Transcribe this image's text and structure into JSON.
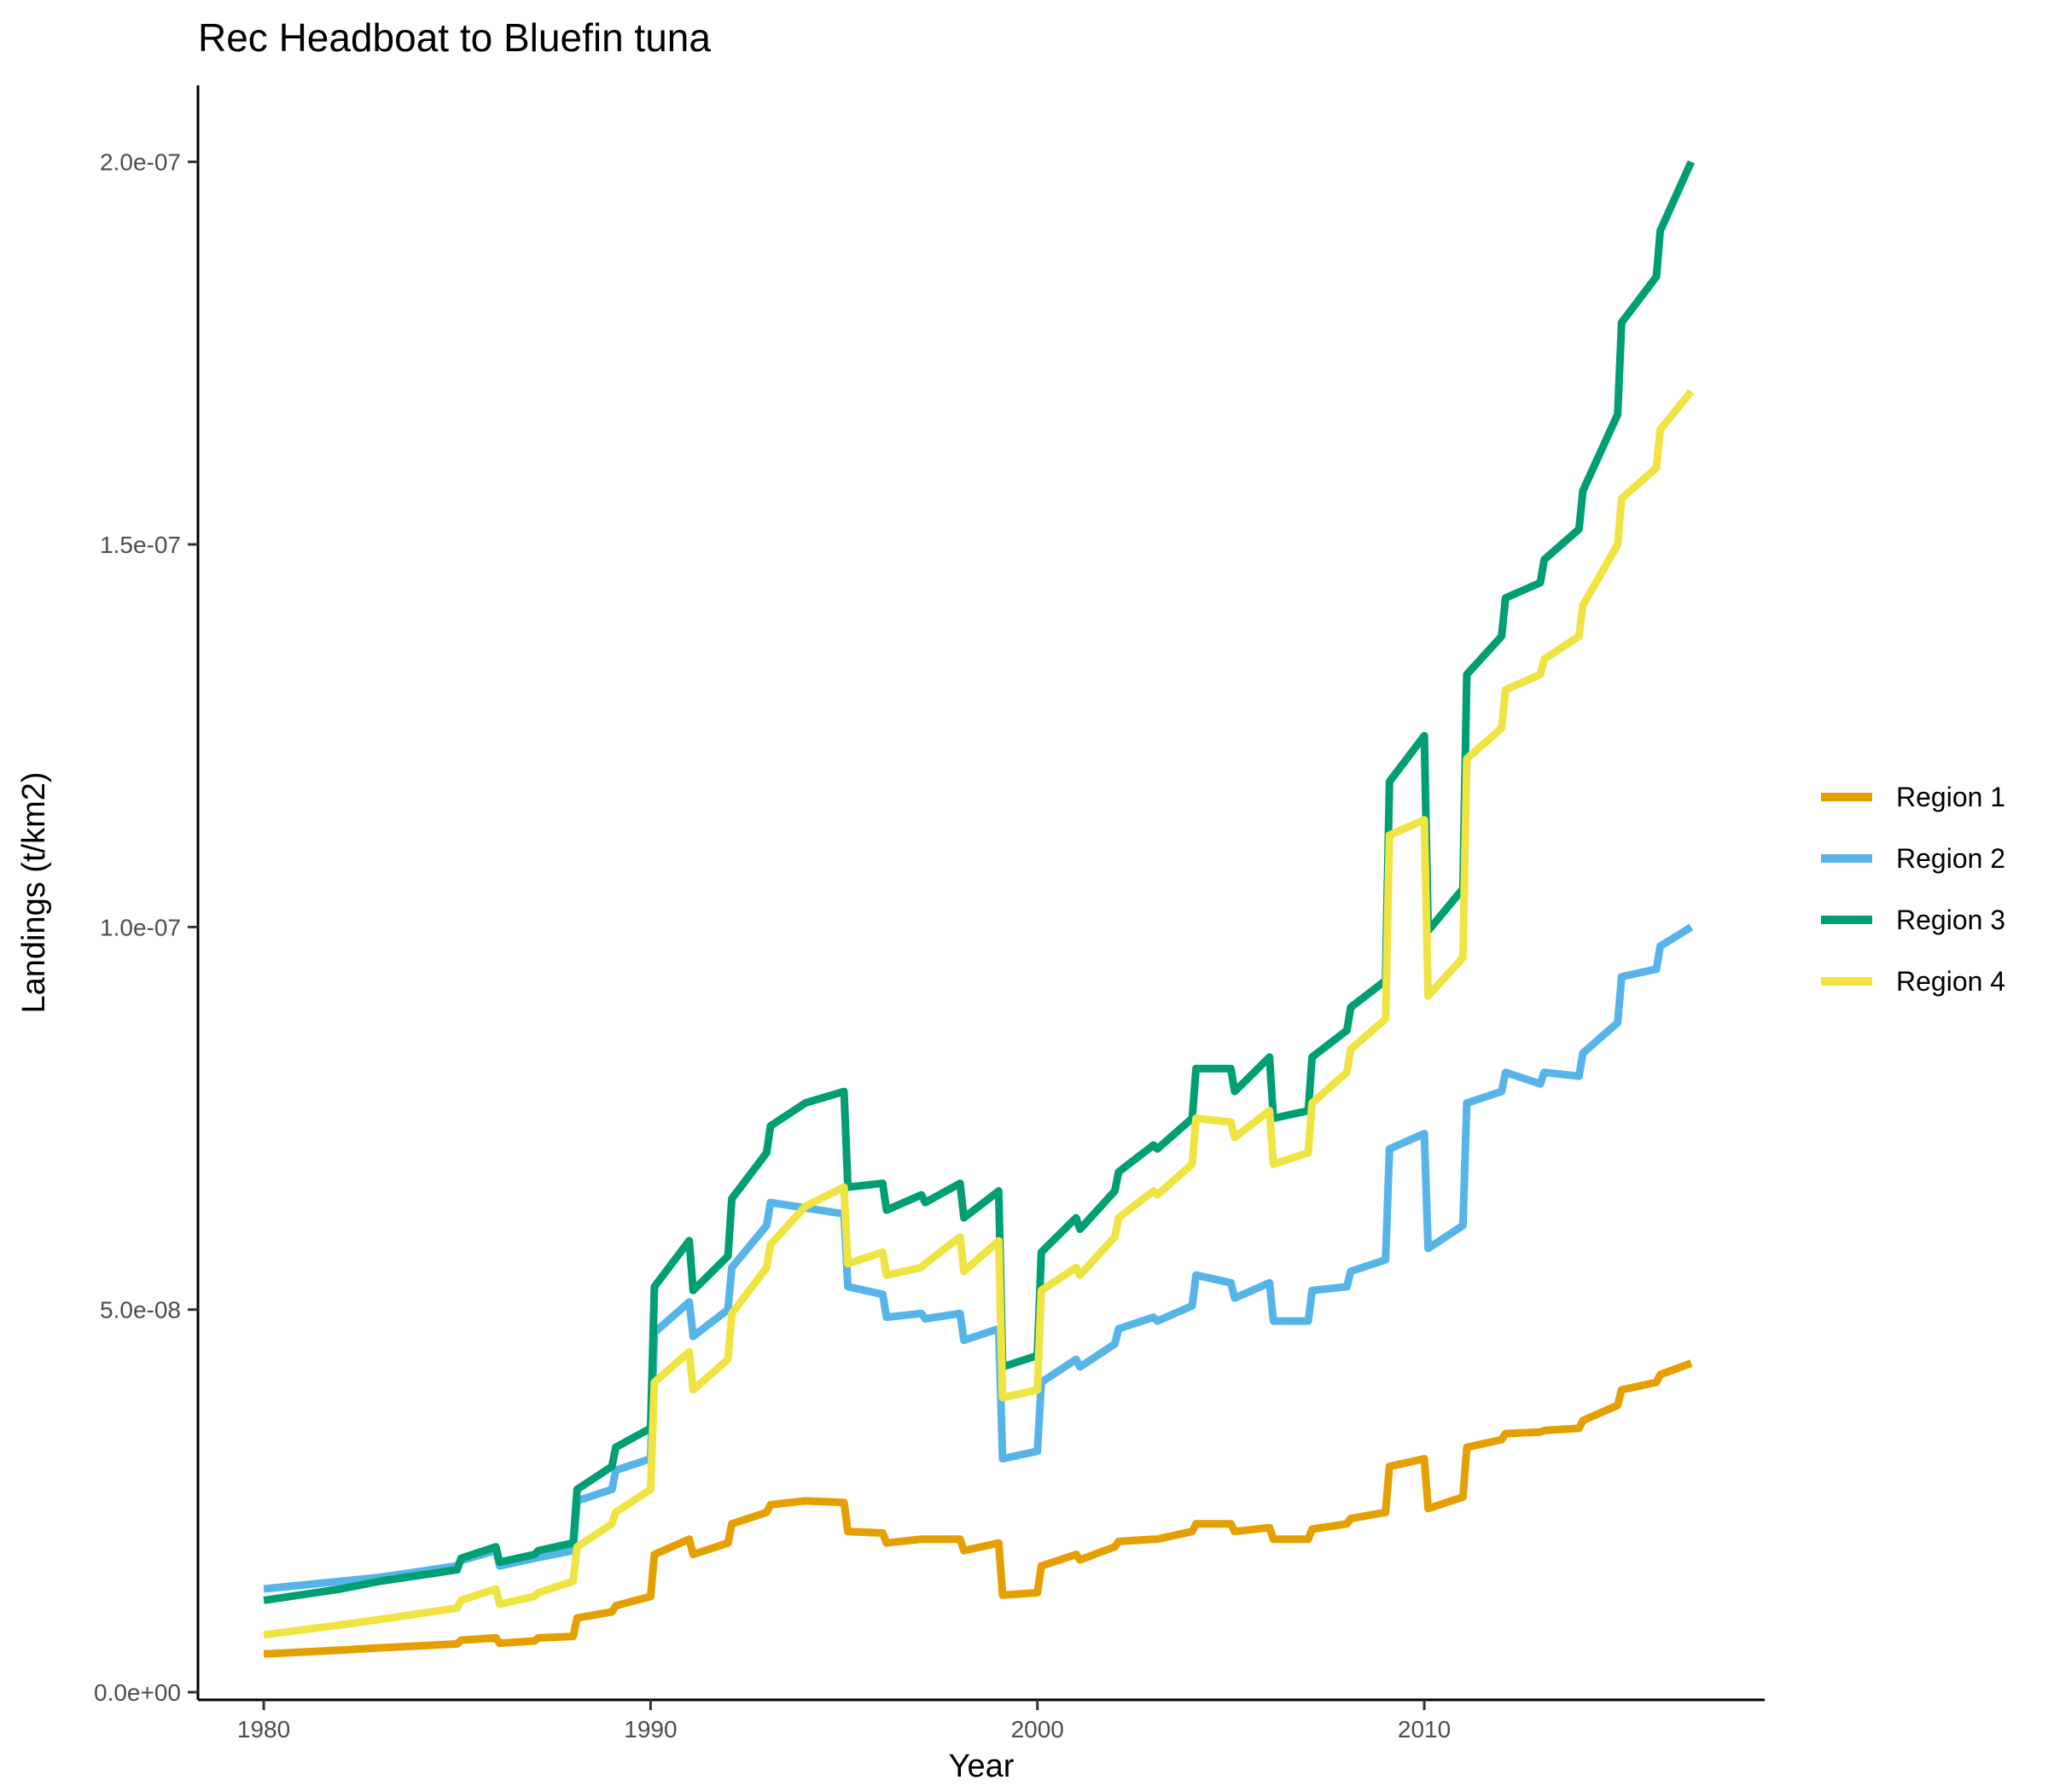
{
  "chart_data": {
    "type": "line",
    "title": "Rec Headboat to Bluefin tuna",
    "xlabel": "Year",
    "ylabel": "Landings (t/km2)",
    "xlim": [
      1978.3,
      2018.8
    ],
    "ylim": [
      -1e-09,
      2.1e-07
    ],
    "xticks": [
      1980,
      1990,
      2000,
      2010
    ],
    "xtick_labels": [
      "1980",
      "1990",
      "2000",
      "2010"
    ],
    "yticks": [
      0,
      5e-08,
      1e-07,
      1.5e-07,
      2e-07
    ],
    "ytick_labels": [
      "0.0e+00",
      "5.0e-08",
      "1.0e-07",
      "1.5e-07",
      "2.0e-07"
    ],
    "grid": false,
    "legend_position": "right",
    "series": [
      {
        "name": "Region 1",
        "color": "#E69F00",
        "points": [
          [
            1980,
            5e-09
          ],
          [
            1982,
            5.5e-09
          ],
          [
            1983,
            5.8e-09
          ],
          [
            1985,
            6.3e-09
          ],
          [
            1985.1,
            6.8e-09
          ],
          [
            1986,
            7.1e-09
          ],
          [
            1986.1,
            6.4e-09
          ],
          [
            1987,
            6.7e-09
          ],
          [
            1987.1,
            7.1e-09
          ],
          [
            1988,
            7.3e-09
          ],
          [
            1988.1,
            9.7e-09
          ],
          [
            1989,
            1.05e-08
          ],
          [
            1989.1,
            1.13e-08
          ],
          [
            1990,
            1.25e-08
          ],
          [
            1990.1,
            1.8e-08
          ],
          [
            1991,
            2e-08
          ],
          [
            1991.1,
            1.8e-08
          ],
          [
            1992,
            1.95e-08
          ],
          [
            1992.1,
            2.2e-08
          ],
          [
            1993,
            2.35e-08
          ],
          [
            1993.1,
            2.45e-08
          ],
          [
            1994,
            2.5e-08
          ],
          [
            1995,
            2.48e-08
          ],
          [
            1995.1,
            2.1e-08
          ],
          [
            1996,
            2.08e-08
          ],
          [
            1996.1,
            1.95e-08
          ],
          [
            1997,
            2e-08
          ],
          [
            1998,
            2e-08
          ],
          [
            1998.1,
            1.85e-08
          ],
          [
            1999,
            1.95e-08
          ],
          [
            1999.1,
            1.27e-08
          ],
          [
            2000,
            1.3e-08
          ],
          [
            2000.1,
            1.65e-08
          ],
          [
            2001,
            1.8e-08
          ],
          [
            2001.1,
            1.73e-08
          ],
          [
            2002,
            1.9e-08
          ],
          [
            2002.1,
            1.97e-08
          ],
          [
            2003,
            2e-08
          ],
          [
            2003.1,
            2e-08
          ],
          [
            2004,
            2.1e-08
          ],
          [
            2004.1,
            2.2e-08
          ],
          [
            2005,
            2.2e-08
          ],
          [
            2005.1,
            2.1e-08
          ],
          [
            2006,
            2.15e-08
          ],
          [
            2006.1,
            2e-08
          ],
          [
            2007,
            2e-08
          ],
          [
            2007.1,
            2.13e-08
          ],
          [
            2008,
            2.2e-08
          ],
          [
            2008.1,
            2.27e-08
          ],
          [
            2009,
            2.35e-08
          ],
          [
            2009.1,
            2.95e-08
          ],
          [
            2010,
            3.05e-08
          ],
          [
            2010.1,
            2.4e-08
          ],
          [
            2011,
            2.55e-08
          ],
          [
            2011.1,
            3.2e-08
          ],
          [
            2012,
            3.3e-08
          ],
          [
            2012.1,
            3.38e-08
          ],
          [
            2013,
            3.4e-08
          ],
          [
            2013.1,
            3.42e-08
          ],
          [
            2014,
            3.45e-08
          ],
          [
            2014.1,
            3.55e-08
          ],
          [
            2015,
            3.75e-08
          ],
          [
            2015.1,
            3.95e-08
          ],
          [
            2016,
            4.05e-08
          ],
          [
            2016.1,
            4.15e-08
          ],
          [
            2016.9,
            4.3e-08
          ]
        ]
      },
      {
        "name": "Region 2",
        "color": "#56B4E9",
        "points": [
          [
            1980,
            1.35e-08
          ],
          [
            1981,
            1.4e-08
          ],
          [
            1983,
            1.5e-08
          ],
          [
            1985,
            1.65e-08
          ],
          [
            1985.1,
            1.72e-08
          ],
          [
            1986,
            1.85e-08
          ],
          [
            1986.1,
            1.65e-08
          ],
          [
            1987,
            1.75e-08
          ],
          [
            1988,
            1.85e-08
          ],
          [
            1988.1,
            2.5e-08
          ],
          [
            1989,
            2.65e-08
          ],
          [
            1989.1,
            2.9e-08
          ],
          [
            1990,
            3.05e-08
          ],
          [
            1990.1,
            4.7e-08
          ],
          [
            1991,
            5.1e-08
          ],
          [
            1991.1,
            4.65e-08
          ],
          [
            1992,
            5e-08
          ],
          [
            1992.1,
            5.55e-08
          ],
          [
            1993,
            6.1e-08
          ],
          [
            1993.1,
            6.4e-08
          ],
          [
            1995,
            6.25e-08
          ],
          [
            1995.1,
            5.3e-08
          ],
          [
            1996,
            5.2e-08
          ],
          [
            1996.1,
            4.9e-08
          ],
          [
            1997,
            4.95e-08
          ],
          [
            1997.1,
            4.88e-08
          ],
          [
            1998,
            4.95e-08
          ],
          [
            1998.1,
            4.6e-08
          ],
          [
            1999,
            4.75e-08
          ],
          [
            1999.1,
            3.05e-08
          ],
          [
            2000,
            3.15e-08
          ],
          [
            2000.1,
            4.05e-08
          ],
          [
            2001,
            4.35e-08
          ],
          [
            2001.1,
            4.25e-08
          ],
          [
            2002,
            4.55e-08
          ],
          [
            2002.1,
            4.75e-08
          ],
          [
            2003,
            4.9e-08
          ],
          [
            2003.1,
            4.85e-08
          ],
          [
            2004,
            5.05e-08
          ],
          [
            2004.1,
            5.45e-08
          ],
          [
            2005,
            5.35e-08
          ],
          [
            2005.1,
            5.15e-08
          ],
          [
            2006,
            5.35e-08
          ],
          [
            2006.1,
            4.85e-08
          ],
          [
            2007,
            4.85e-08
          ],
          [
            2007.1,
            5.25e-08
          ],
          [
            2008,
            5.3e-08
          ],
          [
            2008.1,
            5.5e-08
          ],
          [
            2009,
            5.65e-08
          ],
          [
            2009.1,
            7.1e-08
          ],
          [
            2010,
            7.3e-08
          ],
          [
            2010.1,
            5.8e-08
          ],
          [
            2011,
            6.1e-08
          ],
          [
            2011.1,
            7.7e-08
          ],
          [
            2012,
            7.85e-08
          ],
          [
            2012.1,
            8.1e-08
          ],
          [
            2013,
            7.95e-08
          ],
          [
            2013.1,
            8.1e-08
          ],
          [
            2014,
            8.05e-08
          ],
          [
            2014.1,
            8.35e-08
          ],
          [
            2015,
            8.75e-08
          ],
          [
            2015.1,
            9.35e-08
          ],
          [
            2016,
            9.45e-08
          ],
          [
            2016.1,
            9.75e-08
          ],
          [
            2016.9,
            1e-07
          ]
        ]
      },
      {
        "name": "Region 3",
        "color": "#009E73",
        "points": [
          [
            1980,
            1.2e-08
          ],
          [
            1982,
            1.35e-08
          ],
          [
            1983,
            1.45e-08
          ],
          [
            1985,
            1.6e-08
          ],
          [
            1985.1,
            1.75e-08
          ],
          [
            1986,
            1.9e-08
          ],
          [
            1986.1,
            1.7e-08
          ],
          [
            1987,
            1.8e-08
          ],
          [
            1987.1,
            1.85e-08
          ],
          [
            1988,
            1.95e-08
          ],
          [
            1988.1,
            2.65e-08
          ],
          [
            1989,
            2.95e-08
          ],
          [
            1989.1,
            3.2e-08
          ],
          [
            1990,
            3.45e-08
          ],
          [
            1990.1,
            5.3e-08
          ],
          [
            1991,
            5.9e-08
          ],
          [
            1991.1,
            5.25e-08
          ],
          [
            1992,
            5.7e-08
          ],
          [
            1992.1,
            6.45e-08
          ],
          [
            1993,
            7.05e-08
          ],
          [
            1993.1,
            7.4e-08
          ],
          [
            1994,
            7.7e-08
          ],
          [
            1995,
            7.85e-08
          ],
          [
            1995.1,
            6.6e-08
          ],
          [
            1996,
            6.65e-08
          ],
          [
            1996.1,
            6.3e-08
          ],
          [
            1997,
            6.5e-08
          ],
          [
            1997.1,
            6.4e-08
          ],
          [
            1998,
            6.65e-08
          ],
          [
            1998.1,
            6.2e-08
          ],
          [
            1999,
            6.55e-08
          ],
          [
            1999.1,
            4.25e-08
          ],
          [
            2000,
            4.4e-08
          ],
          [
            2000.1,
            5.75e-08
          ],
          [
            2001,
            6.2e-08
          ],
          [
            2001.1,
            6.05e-08
          ],
          [
            2002,
            6.55e-08
          ],
          [
            2002.1,
            6.8e-08
          ],
          [
            2003,
            7.15e-08
          ],
          [
            2003.1,
            7.1e-08
          ],
          [
            2004,
            7.5e-08
          ],
          [
            2004.1,
            8.15e-08
          ],
          [
            2005,
            8.15e-08
          ],
          [
            2005.1,
            7.85e-08
          ],
          [
            2006,
            8.3e-08
          ],
          [
            2006.1,
            7.5e-08
          ],
          [
            2007,
            7.6e-08
          ],
          [
            2007.1,
            8.3e-08
          ],
          [
            2008,
            8.65e-08
          ],
          [
            2008.1,
            8.95e-08
          ],
          [
            2009,
            9.3e-08
          ],
          [
            2009.1,
            1.19e-07
          ],
          [
            2010,
            1.25e-07
          ],
          [
            2010.1,
            9.95e-08
          ],
          [
            2011,
            1.05e-07
          ],
          [
            2011.1,
            1.33e-07
          ],
          [
            2012,
            1.38e-07
          ],
          [
            2012.1,
            1.43e-07
          ],
          [
            2013,
            1.45e-07
          ],
          [
            2013.1,
            1.48e-07
          ],
          [
            2014,
            1.52e-07
          ],
          [
            2014.1,
            1.57e-07
          ],
          [
            2015,
            1.67e-07
          ],
          [
            2015.1,
            1.79e-07
          ],
          [
            2016,
            1.85e-07
          ],
          [
            2016.1,
            1.91e-07
          ],
          [
            2016.9,
            2e-07
          ]
        ]
      },
      {
        "name": "Region 4",
        "color": "#F0E442",
        "points": [
          [
            1980,
            7.5e-09
          ],
          [
            1982,
            8.8e-09
          ],
          [
            1983,
            9.5e-09
          ],
          [
            1985,
            1.1e-08
          ],
          [
            1985.1,
            1.2e-08
          ],
          [
            1986,
            1.35e-08
          ],
          [
            1986.1,
            1.15e-08
          ],
          [
            1987,
            1.25e-08
          ],
          [
            1987.1,
            1.3e-08
          ],
          [
            1988,
            1.45e-08
          ],
          [
            1988.1,
            1.9e-08
          ],
          [
            1989,
            2.2e-08
          ],
          [
            1989.1,
            2.35e-08
          ],
          [
            1990,
            2.65e-08
          ],
          [
            1990.1,
            4.05e-08
          ],
          [
            1991,
            4.45e-08
          ],
          [
            1991.1,
            3.95e-08
          ],
          [
            1992,
            4.35e-08
          ],
          [
            1992.1,
            4.95e-08
          ],
          [
            1993,
            5.55e-08
          ],
          [
            1993.1,
            5.85e-08
          ],
          [
            1994,
            6.35e-08
          ],
          [
            1995,
            6.6e-08
          ],
          [
            1995.1,
            5.6e-08
          ],
          [
            1996,
            5.75e-08
          ],
          [
            1996.1,
            5.45e-08
          ],
          [
            1997,
            5.55e-08
          ],
          [
            1997.1,
            5.6e-08
          ],
          [
            1998,
            5.95e-08
          ],
          [
            1998.1,
            5.5e-08
          ],
          [
            1999,
            5.9e-08
          ],
          [
            1999.1,
            3.85e-08
          ],
          [
            2000,
            3.95e-08
          ],
          [
            2000.1,
            5.25e-08
          ],
          [
            2001,
            5.55e-08
          ],
          [
            2001.1,
            5.45e-08
          ],
          [
            2002,
            5.95e-08
          ],
          [
            2002.1,
            6.2e-08
          ],
          [
            2003,
            6.55e-08
          ],
          [
            2003.1,
            6.5e-08
          ],
          [
            2004,
            6.9e-08
          ],
          [
            2004.1,
            7.5e-08
          ],
          [
            2005,
            7.45e-08
          ],
          [
            2005.1,
            7.25e-08
          ],
          [
            2006,
            7.6e-08
          ],
          [
            2006.1,
            6.9e-08
          ],
          [
            2007,
            7.05e-08
          ],
          [
            2007.1,
            7.7e-08
          ],
          [
            2008,
            8.1e-08
          ],
          [
            2008.1,
            8.4e-08
          ],
          [
            2009,
            8.8e-08
          ],
          [
            2009.1,
            1.12e-07
          ],
          [
            2010,
            1.14e-07
          ],
          [
            2010.1,
            9.1e-08
          ],
          [
            2011,
            9.6e-08
          ],
          [
            2011.1,
            1.22e-07
          ],
          [
            2012,
            1.26e-07
          ],
          [
            2012.1,
            1.31e-07
          ],
          [
            2013,
            1.33e-07
          ],
          [
            2013.1,
            1.35e-07
          ],
          [
            2014,
            1.38e-07
          ],
          [
            2014.1,
            1.42e-07
          ],
          [
            2015,
            1.5e-07
          ],
          [
            2015.1,
            1.56e-07
          ],
          [
            2016,
            1.6e-07
          ],
          [
            2016.1,
            1.65e-07
          ],
          [
            2016.9,
            1.7e-07
          ]
        ]
      }
    ]
  }
}
